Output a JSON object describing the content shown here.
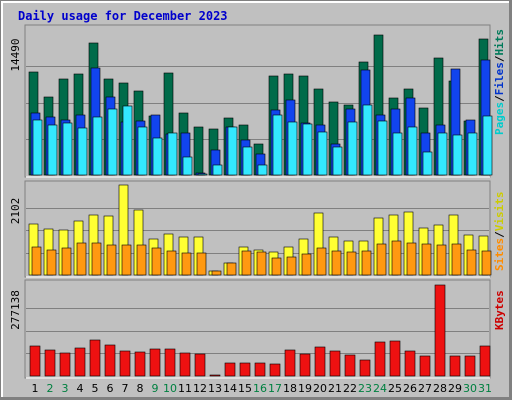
{
  "chart_data": {
    "type": "bar",
    "title": "Daily usage for December 2023",
    "days": [
      "1",
      "2",
      "3",
      "4",
      "5",
      "6",
      "7",
      "8",
      "9",
      "10",
      "11",
      "12",
      "13",
      "14",
      "15",
      "16",
      "17",
      "18",
      "19",
      "20",
      "21",
      "22",
      "23",
      "24",
      "25",
      "26",
      "27",
      "28",
      "29",
      "30",
      "31"
    ],
    "weekend_days": [
      "2",
      "3",
      "9",
      "10",
      "16",
      "17",
      "23",
      "24",
      "30",
      "31"
    ],
    "panels": [
      {
        "id": "hits-files-pages",
        "max_label": "14490",
        "ymax": 14490,
        "legend": [
          {
            "text": "Pages",
            "color": "#00cccc"
          },
          {
            "text": "/",
            "color": "#000000"
          },
          {
            "text": "Files",
            "color": "#0033cc"
          },
          {
            "text": "/",
            "color": "#000000"
          },
          {
            "text": "Hits",
            "color": "#007a5a"
          }
        ],
        "series": [
          {
            "name": "Hits",
            "color": "#006b4a",
            "values": [
              10300,
              7800,
              9600,
              10100,
              13200,
              9600,
              9200,
              8400,
              5900,
              10200,
              6200,
              4800,
              4600,
              5700,
              5000,
              3100,
              9900,
              10100,
              9900,
              8600,
              7300,
              7000,
              11300,
              14000,
              7700,
              8600,
              6700,
              11700,
              9400,
              5400,
              13600
            ]
          },
          {
            "name": "Files",
            "color": "#1144ee",
            "values": [
              6200,
              5800,
              5500,
              6000,
              10700,
              7800,
              5300,
              5400,
              6000,
              4100,
              4200,
              200,
              2500,
              4800,
              3500,
              2100,
              6500,
              7500,
              5200,
              5000,
              3100,
              6600,
              10500,
              6000,
              6600,
              7700,
              4200,
              5000,
              10600,
              5500,
              11500
            ]
          },
          {
            "name": "Pages",
            "color": "#33e8ff",
            "values": [
              5500,
              5000,
              5200,
              4700,
              5800,
              6600,
              6900,
              4800,
              3700,
              4200,
              1800,
              100,
              1000,
              4800,
              2800,
              1000,
              6000,
              5300,
              5100,
              4300,
              2800,
              5300,
              7000,
              5400,
              4200,
              4800,
              2300,
              4200,
              4000,
              4200,
              5900
            ]
          }
        ]
      },
      {
        "id": "visits-sites",
        "max_label": "2102",
        "ymax": 2102,
        "legend": [
          {
            "text": "Sites",
            "color": "#ff8c00"
          },
          {
            "text": "/",
            "color": "#000000"
          },
          {
            "text": "Visits",
            "color": "#cccc00"
          }
        ],
        "series": [
          {
            "name": "Visits",
            "color": "#ffff33",
            "values": [
              1200,
              1070,
              1040,
              1250,
              1390,
              1370,
              2100,
              1510,
              830,
              950,
              890,
              880,
              100,
              290,
              650,
              590,
              530,
              660,
              840,
              1450,
              890,
              790,
              790,
              1340,
              1410,
              1480,
              1100,
              1160,
              1400,
              930,
              920
            ]
          },
          {
            "name": "Sites",
            "color": "#ff9911",
            "values": [
              650,
              590,
              640,
              740,
              750,
              700,
              700,
              690,
              630,
              560,
              520,
              510,
              100,
              270,
              560,
              530,
              400,
              420,
              480,
              620,
              560,
              540,
              560,
              720,
              800,
              750,
              720,
              700,
              730,
              580,
              570
            ]
          }
        ]
      },
      {
        "id": "kbytes",
        "max_label": "277138",
        "ymax": 277138,
        "legend": [
          {
            "text": "KBytes",
            "color": "#cc0000"
          }
        ],
        "series": [
          {
            "name": "KBytes",
            "color": "#ee1111",
            "values": [
              90000,
              78000,
              70000,
              85000,
              111000,
              95000,
              77000,
              72000,
              82000,
              82000,
              70000,
              67000,
              3000,
              39000,
              39000,
              39000,
              38000,
              79000,
              66000,
              87000,
              75000,
              64000,
              49000,
              104000,
              107000,
              77000,
              62000,
              277000,
              60000,
              60000,
              90000
            ]
          }
        ]
      }
    ]
  }
}
